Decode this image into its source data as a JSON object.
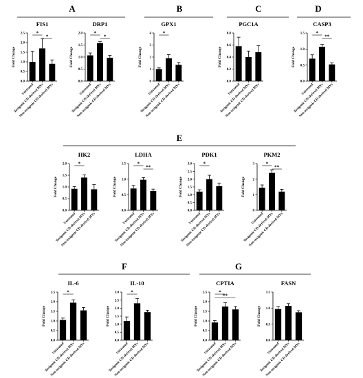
{
  "panels": [
    {
      "letter": "A"
    },
    {
      "letter": "B"
    },
    {
      "letter": "C"
    },
    {
      "letter": "D"
    },
    {
      "letter": "E"
    },
    {
      "letter": "F"
    },
    {
      "letter": "G"
    }
  ],
  "ylabel": "Fold Change",
  "chart_data": [
    {
      "type": "bar",
      "title": "FIS1",
      "ylabel": "Fold Change",
      "categories": [
        "Untreated",
        "Toxigenic CD-derived MVs",
        "Non-toxigenic CD-derived MVs"
      ],
      "values": [
        1.0,
        1.7,
        0.9
      ],
      "errors": [
        0.55,
        0.5,
        0.2
      ],
      "ylim": [
        0,
        2.5
      ],
      "yticks": [
        "0.0",
        "0.5",
        "1.0",
        "1.5",
        "2.0",
        "2.5"
      ],
      "significance": [
        {
          "from": 0,
          "to": 1,
          "label": "*"
        },
        {
          "from": 1,
          "to": 2,
          "label": "*"
        }
      ]
    },
    {
      "type": "bar",
      "title": "DRP1",
      "ylabel": "Fold Change",
      "categories": [
        "Untreated",
        "Toxigenic CD-derived MVs",
        "Non-toxigenic CD-derived MVs"
      ],
      "values": [
        1.07,
        1.58,
        0.97
      ],
      "errors": [
        0.1,
        0.07,
        0.1
      ],
      "ylim": [
        0,
        2.0
      ],
      "yticks": [
        "0.0",
        "0.5",
        "1.0",
        "1.5",
        "2.0"
      ],
      "significance": [
        {
          "from": 0,
          "to": 1,
          "label": "*"
        },
        {
          "from": 1,
          "to": 2,
          "label": "*"
        }
      ]
    },
    {
      "type": "bar",
      "title": "GPX1",
      "ylabel": "Fold Change",
      "categories": [
        "Untreated",
        "Toxigenic CD-derived MVs",
        "Non-toxigenic CD-derived MVs"
      ],
      "values": [
        1.0,
        1.9,
        1.35
      ],
      "errors": [
        0.1,
        0.3,
        0.2
      ],
      "ylim": [
        0,
        4
      ],
      "yticks": [
        "0",
        "1",
        "2",
        "3",
        "4"
      ],
      "significance": [
        {
          "from": 0,
          "to": 1,
          "label": "*"
        }
      ]
    },
    {
      "type": "bar",
      "title": "PGC1A",
      "ylabel": "Fold Change",
      "categories": [
        "Untreated",
        "Toxigenic CD-derived MVs",
        "Non-toxigenic CD-derived MVs"
      ],
      "values": [
        0.58,
        0.4,
        0.48
      ],
      "errors": [
        0.15,
        0.1,
        0.11
      ],
      "ylim": [
        0,
        0.8
      ],
      "yticks": [
        "0.0",
        "0.2",
        "0.4",
        "0.6",
        "0.8"
      ],
      "significance": []
    },
    {
      "type": "bar",
      "title": "CASP3",
      "ylabel": "Fold Change",
      "categories": [
        "Untreated",
        "Toxigenic CD-derived MVs",
        "Non-toxigenic CD-derived MVs"
      ],
      "values": [
        0.7,
        1.07,
        0.52
      ],
      "errors": [
        0.12,
        0.08,
        0.05
      ],
      "ylim": [
        0,
        1.5
      ],
      "yticks": [
        "0.0",
        "0.5",
        "1.0",
        "1.5"
      ],
      "significance": [
        {
          "from": 0,
          "to": 1,
          "label": "*"
        },
        {
          "from": 1,
          "to": 2,
          "label": "**"
        }
      ]
    },
    {
      "type": "bar",
      "title": "HK2",
      "ylabel": "Fold Change",
      "categories": [
        "Untreated",
        "Toxigenic CD-derived MVs",
        "Non-toxigenic CD-derived MVs"
      ],
      "values": [
        0.92,
        1.4,
        0.9
      ],
      "errors": [
        0.1,
        0.12,
        0.2
      ],
      "ylim": [
        0,
        2.0
      ],
      "yticks": [
        "0.0",
        "0.5",
        "1.0",
        "1.5",
        "2.0"
      ],
      "significance": [
        {
          "from": 0,
          "to": 1,
          "label": "*"
        }
      ]
    },
    {
      "type": "bar",
      "title": "LDHA",
      "ylabel": "Fold Change",
      "categories": [
        "Untreated",
        "Toxigenic CD-derived MVs",
        "Non-toxigenic CD-derived MVs"
      ],
      "values": [
        0.7,
        0.98,
        0.62
      ],
      "errors": [
        0.1,
        0.07,
        0.06
      ],
      "ylim": [
        0,
        1.5
      ],
      "yticks": [
        "0.0",
        "0.5",
        "1.0",
        "1.5"
      ],
      "significance": [
        {
          "from": 0,
          "to": 1,
          "label": "*"
        },
        {
          "from": 1,
          "to": 2,
          "label": "**"
        }
      ]
    },
    {
      "type": "bar",
      "title": "PDK1",
      "ylabel": "Fold Change",
      "categories": [
        "Untreated",
        "Toxigenic CD-derived MVs",
        "Non-toxigenic CD-derived MVs"
      ],
      "values": [
        1.2,
        2.0,
        1.55
      ],
      "errors": [
        0.12,
        0.25,
        0.2
      ],
      "ylim": [
        0,
        3.0
      ],
      "yticks": [
        "0.0",
        "0.5",
        "1.0",
        "1.5",
        "2.0",
        "2.5",
        "3.0"
      ],
      "significance": [
        {
          "from": 0,
          "to": 1,
          "label": "*"
        }
      ]
    },
    {
      "type": "bar",
      "title": "PKM2",
      "ylabel": "Fold Change",
      "categories": [
        "Untreated",
        "Toxigenic CD-derived MVs",
        "Non-toxigenic CD-derived MVs"
      ],
      "values": [
        1.45,
        2.4,
        1.2
      ],
      "errors": [
        0.18,
        0.2,
        0.15
      ],
      "ylim": [
        0,
        3
      ],
      "yticks": [
        "0",
        "1",
        "2",
        "3"
      ],
      "significance": [
        {
          "from": 0,
          "to": 1,
          "label": "*"
        },
        {
          "from": 1,
          "to": 2,
          "label": "**"
        }
      ]
    },
    {
      "type": "bar",
      "title": "IL-6",
      "ylabel": "Fold Change",
      "categories": [
        "Untreated",
        "Toxigenic CD-derived MVs",
        "Non-toxigenic CD-derived MVs"
      ],
      "values": [
        1.05,
        1.95,
        1.55
      ],
      "errors": [
        0.1,
        0.15,
        0.15
      ],
      "ylim": [
        0,
        2.5
      ],
      "yticks": [
        "0.0",
        "0.5",
        "1.0",
        "1.5",
        "2.0",
        "2.5"
      ],
      "significance": [
        {
          "from": 0,
          "to": 1,
          "label": "*"
        }
      ]
    },
    {
      "type": "bar",
      "title": "IL-10",
      "ylabel": "Fold Change",
      "categories": [
        "Untreated",
        "Toxigenic CD-derived MVs",
        "Non-toxigenic CD-derived MVs"
      ],
      "values": [
        1.2,
        2.3,
        1.75
      ],
      "errors": [
        0.25,
        0.3,
        0.12
      ],
      "ylim": [
        0,
        3.0
      ],
      "yticks": [
        "0.0",
        "0.5",
        "1.0",
        "1.5",
        "2.0",
        "2.5",
        "3.0"
      ],
      "significance": [
        {
          "from": 0,
          "to": 1,
          "label": "*"
        }
      ]
    },
    {
      "type": "bar",
      "title": "CPTIA",
      "ylabel": "Fold Change",
      "categories": [
        "Untreated",
        "Toxigenic CD-derived MVs",
        "Non-toxigenic CD-derived MVs"
      ],
      "values": [
        0.92,
        1.75,
        1.6
      ],
      "errors": [
        0.1,
        0.2,
        0.15
      ],
      "ylim": [
        0,
        2.5
      ],
      "yticks": [
        "0.0",
        "0.5",
        "1.0",
        "1.5",
        "2.0",
        "2.5"
      ],
      "significance": [
        {
          "from": 0,
          "to": 1,
          "label": "*"
        },
        {
          "from": 0,
          "to": 2,
          "label": "**"
        }
      ]
    },
    {
      "type": "bar",
      "title": "FASN",
      "ylabel": "Fold Change",
      "categories": [
        "Untreated",
        "Toxigenic CD-derived MVs",
        "Non-toxigenic CD-derived MVs"
      ],
      "values": [
        0.97,
        1.07,
        0.87
      ],
      "errors": [
        0.08,
        0.07,
        0.05
      ],
      "ylim": [
        0,
        1.5
      ],
      "yticks": [
        "0.0",
        "0.5",
        "1.0",
        "1.5"
      ],
      "significance": []
    }
  ]
}
